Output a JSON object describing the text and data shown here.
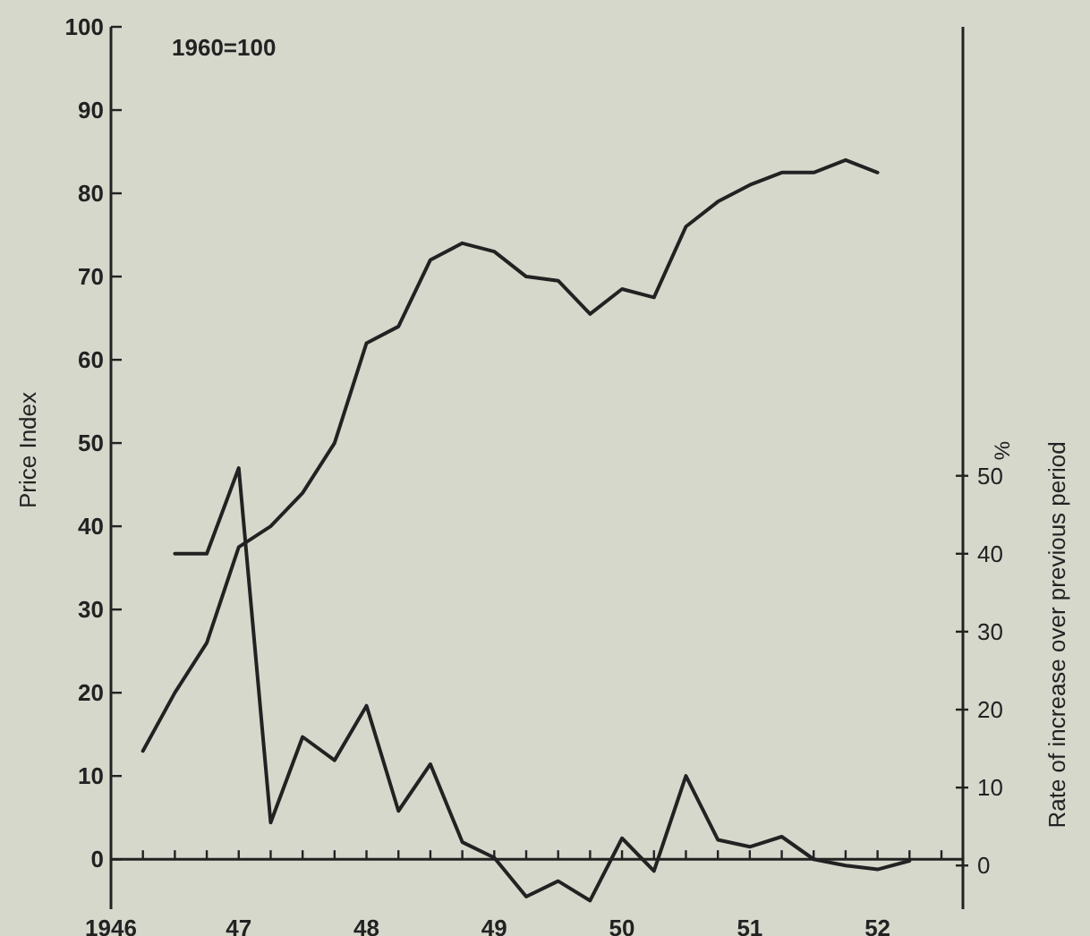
{
  "chart_data": {
    "type": "line",
    "ylabel": "Price Index",
    "y2label": "Rate of increase over previous period",
    "annotations": [
      "1960=100",
      "%"
    ],
    "categories": [
      "1946",
      null,
      null,
      null,
      "47",
      null,
      null,
      null,
      "48",
      null,
      null,
      null,
      "49",
      null,
      null,
      null,
      "50",
      null,
      null,
      null,
      "51",
      null,
      null,
      null,
      "52",
      null,
      null
    ],
    "ylim": [
      -6,
      100
    ],
    "yticks": [
      0,
      10,
      20,
      30,
      40,
      50,
      60,
      70,
      80,
      90,
      100
    ],
    "y2lim": [
      -5.6,
      107.6
    ],
    "y2ticks": [
      0,
      10,
      20,
      30,
      40,
      50
    ],
    "grid": false,
    "marker": "none",
    "line_style": "solid",
    "series": [
      {
        "color": "#222222",
        "values": [
          null,
          13,
          20,
          26,
          37.5,
          40,
          44,
          50,
          62,
          64,
          72,
          74,
          73,
          70,
          69.5,
          65.5,
          68.5,
          67.5,
          76,
          79,
          81,
          82.5,
          82.5,
          84,
          82.5,
          null,
          null
        ]
      },
      {
        "color": "#222222",
        "axis": "y2",
        "values": [
          null,
          null,
          40,
          40,
          51,
          5.5,
          16.5,
          13.5,
          20.5,
          7,
          13,
          3,
          1,
          -4,
          -2,
          -4.5,
          3.5,
          -0.7,
          11.5,
          3.3,
          2.4,
          3.7,
          0.8,
          0,
          -0.5,
          0.6,
          null
        ]
      }
    ]
  }
}
